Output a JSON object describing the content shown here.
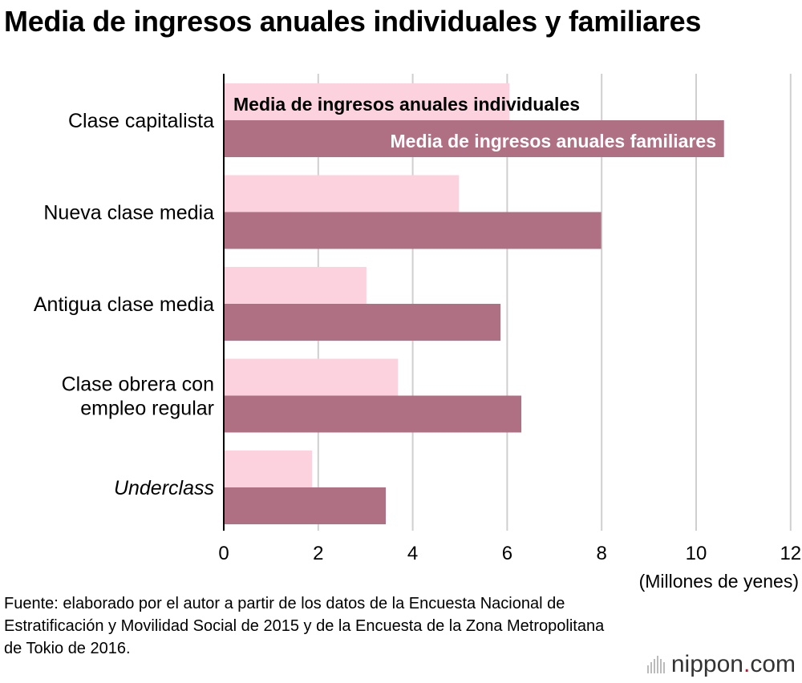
{
  "title": "Media de ingresos anuales individuales y familiares",
  "chart_data": {
    "type": "bar",
    "orientation": "horizontal",
    "categories": [
      "Clase capitalista",
      "Nueva clase media",
      "Antigua clase media",
      "Clase obrera con empleo regular",
      "Underclass"
    ],
    "category_lines": [
      [
        "Clase capitalista"
      ],
      [
        "Nueva clase media"
      ],
      [
        "Antigua clase media"
      ],
      [
        "Clase obrera con",
        "empleo regular"
      ],
      [
        "Underclass"
      ]
    ],
    "category_italic": [
      false,
      false,
      false,
      false,
      true
    ],
    "series": [
      {
        "name": "Media de ingresos anuales individuales",
        "values": [
          6.05,
          4.98,
          3.02,
          3.69,
          1.87
        ],
        "color": "#fcd2de"
      },
      {
        "name": "Media de ingresos anuales familiares",
        "values": [
          10.59,
          7.99,
          5.86,
          6.3,
          3.43
        ],
        "color": "#b07083"
      }
    ],
    "xlim": [
      0,
      12
    ],
    "xticks": [
      "0",
      "2",
      "4",
      "6",
      "8",
      "10",
      "12"
    ],
    "xticks_values": [
      0,
      2,
      4,
      6,
      8,
      10,
      12
    ],
    "xlabel": "(Millones de yenes)",
    "grid": true
  },
  "source": "Fuente: elaborado por el autor a partir de los datos de la Encuesta Nacional de Estratificación y Movilidad Social de 2015 y de la Encuesta de la Zona Metropolitana de Tokio de 2016.",
  "logo": {
    "name": "nippon",
    "dot": ".",
    "suffix": "com"
  }
}
